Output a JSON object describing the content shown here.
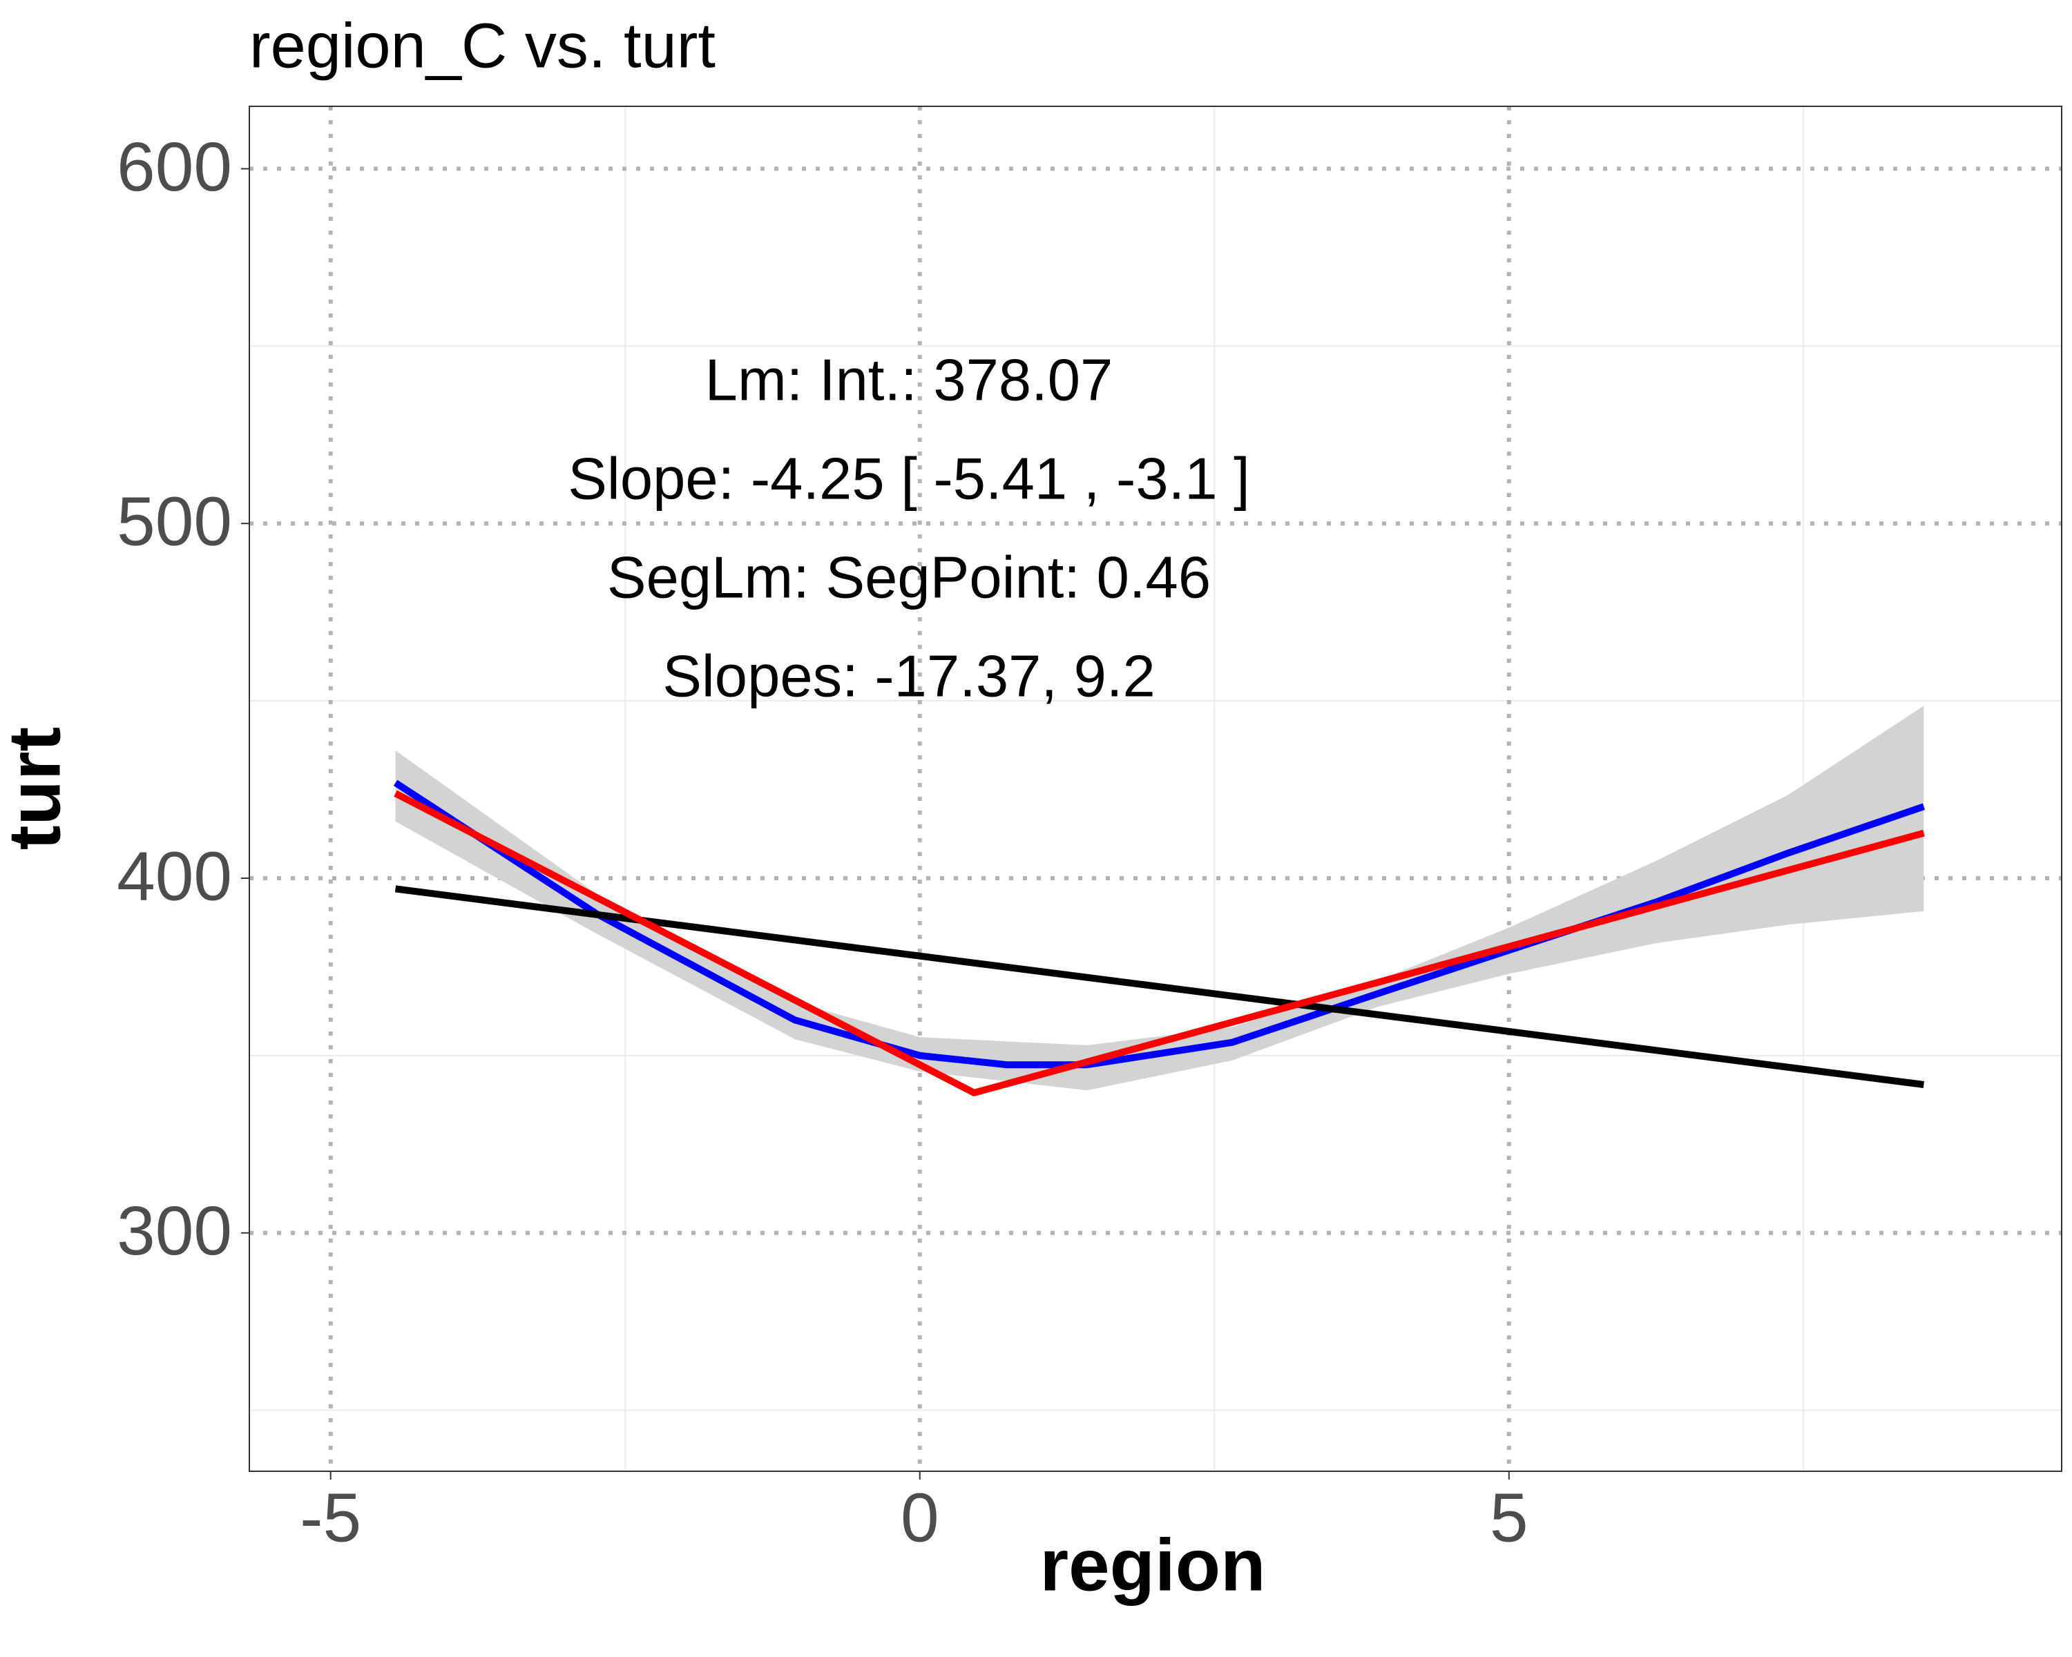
{
  "chart_data": {
    "type": "line",
    "title": "region_C vs. turt",
    "xlabel": "region",
    "ylabel": "turt",
    "annotations": [
      "Lm: Int.: 378.07",
      "Slope: -4.25 [ -5.41 , -3.1 ]",
      "SegLm: SegPoint: 0.46",
      "Slopes: -17.37, 9.2"
    ],
    "xlim": [
      -5.69,
      9.69
    ],
    "ylim": [
      232.8,
      617.6
    ],
    "xticks": [
      -5,
      0,
      5
    ],
    "yticks": [
      300,
      400,
      500,
      600
    ],
    "xminor": [
      -2.5,
      2.5,
      7.5
    ],
    "yminor": [
      250,
      350,
      450,
      550
    ],
    "grid": true,
    "series": [
      {
        "color": "#d3d3d3",
        "kind": "ribbon",
        "x": [
          -4.45,
          -2.74,
          -1.06,
          0,
          1.42,
          2.65,
          3.89,
          5.01,
          6.25,
          7.37,
          8.52
        ],
        "upper": [
          436,
          395.5,
          365,
          355.2,
          352.9,
          358,
          371.2,
          386.2,
          404.9,
          423.5,
          448.6
        ],
        "lower": [
          416,
          384.3,
          354.6,
          345.5,
          340.2,
          348.6,
          363.8,
          373.1,
          381.7,
          386.9,
          390.7
        ]
      },
      {
        "color": "#0000ff",
        "x": [
          -4.45,
          -2.74,
          -1.06,
          0,
          0.74,
          1.42,
          2.65,
          3.89,
          5.01,
          6.25,
          7.37,
          8.52
        ],
        "values": [
          426.9,
          389.9,
          360,
          350,
          347.4,
          347.4,
          353.7,
          367.5,
          379.8,
          393.3,
          407.1,
          420.2
        ]
      },
      {
        "color": "#000000",
        "x": [
          -4.45,
          8.52
        ],
        "values": [
          397,
          341.8
        ]
      },
      {
        "color": "#ff0000",
        "x": [
          -4.45,
          0.46,
          8.52
        ],
        "values": [
          423.9,
          339.5,
          412.7
        ]
      }
    ]
  }
}
